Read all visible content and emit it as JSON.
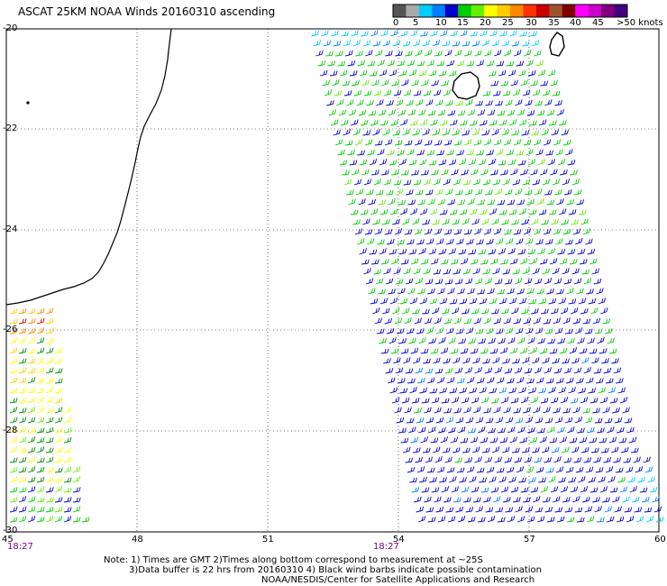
{
  "title": "ASCAT 25KM NOAA Winds 20160310 ascending",
  "colorbar": {
    "labels": [
      "0",
      "5",
      "10",
      "15",
      "20",
      "25",
      "30",
      "35",
      "40",
      "45",
      ">50 knots"
    ],
    "colors": [
      "#555555",
      "#aaaaaa",
      "#00ccff",
      "#0080ff",
      "#0000cc",
      "#00cc00",
      "#66ee00",
      "#ffff00",
      "#ffcc00",
      "#ff8800",
      "#ff3300",
      "#cc0000",
      "#a0522d",
      "#800000",
      "#ff00ff",
      "#cc00cc",
      "#800080",
      "#400080"
    ]
  },
  "axes": {
    "lon_ticks": [
      "45",
      "48",
      "51",
      "54",
      "57",
      "60"
    ],
    "lat_ticks": [
      "-20",
      "-22",
      "-24",
      "-26",
      "-28",
      "-30"
    ],
    "lon_range": [
      45,
      60
    ],
    "lat_range": [
      -20,
      -30
    ]
  },
  "time_labels": [
    "18:27",
    "18:27"
  ],
  "notes": {
    "line1": "Note: 1) Times are GMT 2)Times along bottom correspond to measurement at ~25S",
    "line2": "3)Data buffer is 22 hrs from 20160310 4) Black wind barbs indicate possible contamination",
    "line3": "NOAA/NESDIS/Center for Satellite Applications and Research"
  },
  "colors": {
    "grid": "#000000",
    "coast": "#000000",
    "time_label": "#7a007a"
  }
}
